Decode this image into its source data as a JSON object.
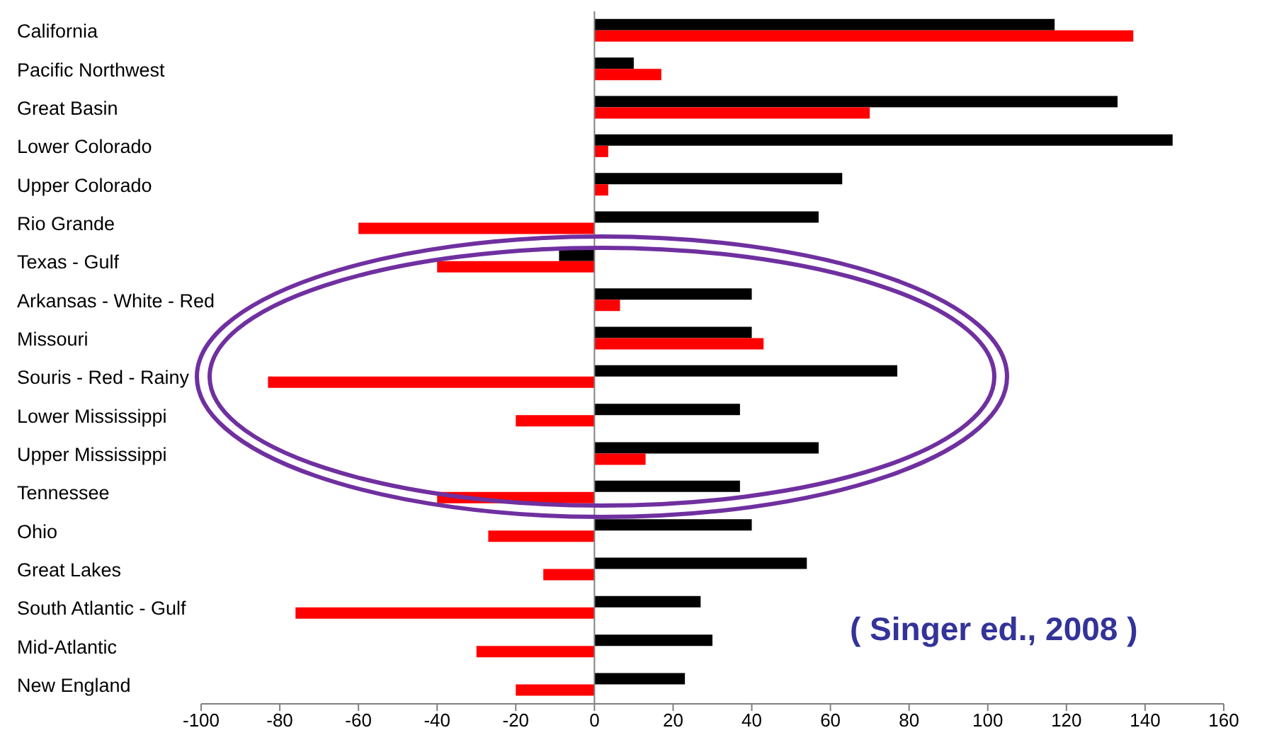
{
  "chart_data": {
    "type": "bar",
    "orientation": "horizontal",
    "categories": [
      "California",
      "Pacific Northwest",
      "Great Basin",
      "Lower Colorado",
      "Upper Colorado",
      "Rio Grande",
      "Texas - Gulf",
      "Arkansas - White - Red",
      "Missouri",
      "Souris - Red - Rainy",
      "Lower Mississippi",
      "Upper Mississippi",
      "Tennessee",
      "Ohio",
      "Great Lakes",
      "South Atlantic - Gulf",
      "Mid-Atlantic",
      "New England"
    ],
    "series": [
      {
        "color": "#000000",
        "values": [
          117,
          10,
          133,
          147,
          63,
          57,
          -9,
          40,
          40,
          77,
          37,
          57,
          37,
          40,
          54,
          27,
          30,
          23
        ]
      },
      {
        "color": "#ff0000",
        "values": [
          137,
          17,
          70,
          3.5,
          3.5,
          -60,
          -40,
          6.5,
          43,
          -83,
          -20,
          13,
          -40,
          -27,
          -13,
          -76,
          -30,
          -20
        ]
      }
    ],
    "xlim": [
      -100,
      160
    ],
    "xticks": [
      -100,
      -80,
      -60,
      -40,
      -20,
      0,
      20,
      40,
      60,
      80,
      100,
      120,
      140,
      160
    ],
    "grid": false,
    "ref_lines": [
      {
        "axis": "x",
        "value": 0,
        "color": "#808080"
      }
    ],
    "annotations": [
      "( Singer ed., 2008 )"
    ]
  }
}
